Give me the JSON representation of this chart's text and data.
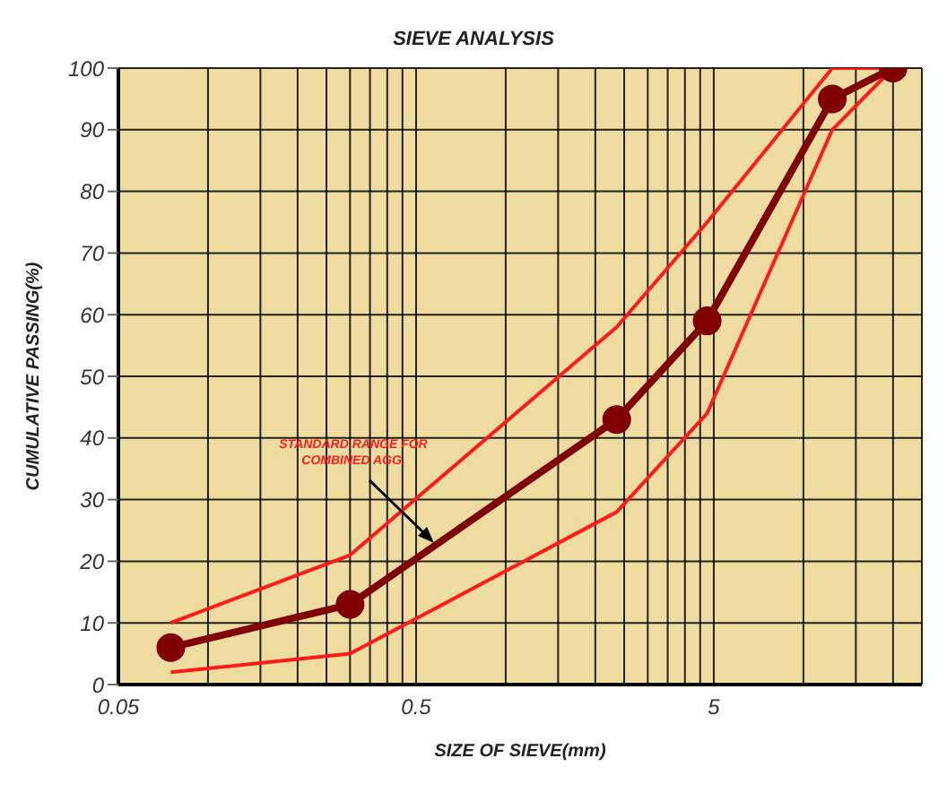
{
  "chart_data": {
    "type": "line",
    "title": "SIEVE ANALYSIS",
    "xlabel": "SIZE OF SIEVE(mm)",
    "ylabel": "CUMULATIVE PASSING(%)",
    "x": [
      0.075,
      0.3,
      2.36,
      4.75,
      12.5,
      20
    ],
    "series": [
      {
        "color": "#ff1a1a",
        "values": [
          10,
          21,
          58,
          75,
          100,
          100
        ],
        "marker": "none"
      },
      {
        "color": "#ff1a1a",
        "values": [
          2,
          5,
          28,
          44,
          90,
          100
        ],
        "marker": "none"
      },
      {
        "color": "#800000",
        "values": [
          6,
          13,
          43,
          59,
          95,
          100
        ],
        "marker": "circle"
      }
    ],
    "log": "x",
    "xlim": [
      0.05,
      25
    ],
    "ylim": [
      0,
      100
    ],
    "xticks": [
      0.05,
      {
        "value": 0.1,
        "label": null
      },
      {
        "value": 0.15,
        "label": null
      },
      {
        "value": 0.2,
        "label": null
      },
      {
        "value": 0.25,
        "label": null
      },
      {
        "value": 0.3,
        "label": null
      },
      {
        "value": 0.35,
        "label": null
      },
      {
        "value": 0.4,
        "label": null
      },
      {
        "value": 0.45,
        "label": null
      },
      0.5,
      {
        "value": 1,
        "label": null
      },
      {
        "value": 1.5,
        "label": null
      },
      {
        "value": 2,
        "label": null
      },
      {
        "value": 2.5,
        "label": null
      },
      {
        "value": 3,
        "label": null
      },
      {
        "value": 3.5,
        "label": null
      },
      {
        "value": 4,
        "label": null
      },
      {
        "value": 4.5,
        "label": null
      },
      5,
      {
        "value": 10,
        "label": null
      },
      {
        "value": 15,
        "label": null
      },
      {
        "value": 20,
        "label": null
      }
    ],
    "yticks": [
      0,
      10,
      20,
      30,
      40,
      50,
      60,
      70,
      80,
      90,
      100
    ],
    "grid": true,
    "legend": false,
    "annotations": [
      "STANDARD RANGE FOR COMBINED AGG."
    ]
  }
}
